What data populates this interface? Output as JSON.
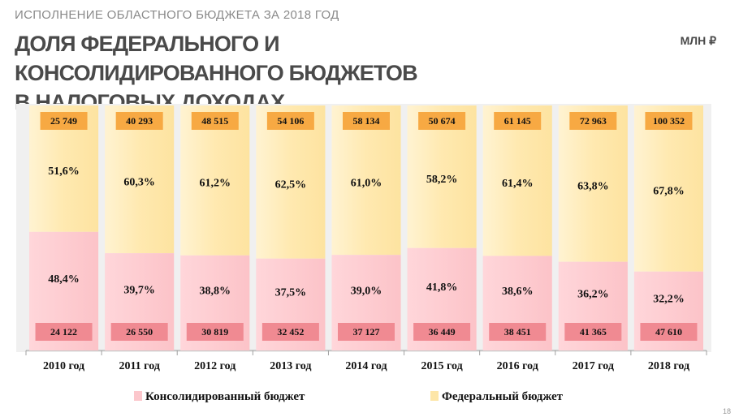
{
  "header": {
    "subtitle": "ИСПОЛНЕНИЕ ОБЛАСТНОГО БЮДЖЕТА ЗА 2018 ГОД",
    "title_line1": "ДОЛЯ ФЕДЕРАЛЬНОГО И КОНСОЛИДИРОВАННОГО БЮДЖЕТОВ",
    "title_line2": "В НАЛОГОВЫХ ДОХОДАХ",
    "unit": "МЛН ₽"
  },
  "page_number": "18",
  "colors": {
    "federal_fill": "#fde6a8",
    "federal_fill_light": "#fff4d6",
    "federal_label_bg": "#f7a943",
    "consolidated_fill": "#fcc7cc",
    "consolidated_label_bg": "#f08a92",
    "background": "#f0f0f0"
  },
  "chart_data": {
    "type": "bar",
    "stacked": true,
    "percent_stacked": true,
    "categories": [
      "2010 год",
      "2011 год",
      "2012 год",
      "2013 год",
      "2014 год",
      "2015 год",
      "2016 год",
      "2017 год",
      "2018 год"
    ],
    "series": [
      {
        "name": "Консолидированный бюджет",
        "percent_labels": [
          "48,4%",
          "39,7%",
          "38,8%",
          "37,5%",
          "39,0%",
          "41,8%",
          "38,6%",
          "36,2%",
          "32,2%"
        ],
        "percent_values": [
          48.4,
          39.7,
          38.8,
          37.5,
          39.0,
          41.8,
          38.6,
          36.2,
          32.2
        ],
        "amount_labels": [
          "24 122",
          "26 550",
          "30 819",
          "32 452",
          "37 127",
          "36 449",
          "38 451",
          "41 365",
          "47 610"
        ],
        "amounts": [
          24122,
          26550,
          30819,
          32452,
          37127,
          36449,
          38451,
          41365,
          47610
        ]
      },
      {
        "name": "Федеральный бюджет",
        "percent_labels": [
          "51,6%",
          "60,3%",
          "61,2%",
          "62,5%",
          "61,0%",
          "58,2%",
          "61,4%",
          "63,8%",
          "67,8%"
        ],
        "percent_values": [
          51.6,
          60.3,
          61.2,
          62.5,
          61.0,
          58.2,
          61.4,
          63.8,
          67.8
        ],
        "amount_labels": [
          "25 749",
          "40 293",
          "48 515",
          "54 106",
          "58 134",
          "50 674",
          "61 145",
          "72 963",
          "100 352"
        ],
        "amounts": [
          25749,
          40293,
          48515,
          54106,
          58134,
          50674,
          61145,
          72963,
          100352
        ]
      }
    ],
    "ylim": [
      0,
      100
    ],
    "legend": [
      "Консолидированный бюджет",
      "Федеральный бюджет"
    ],
    "legend_position": "bottom"
  }
}
